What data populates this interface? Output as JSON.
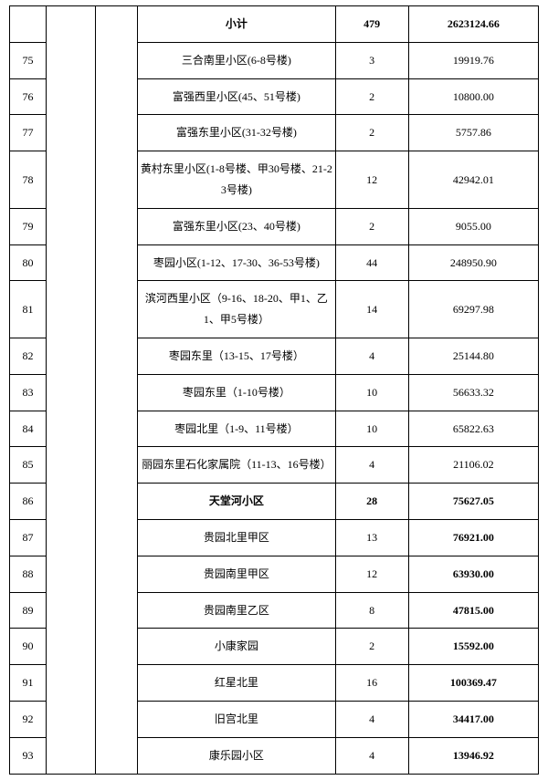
{
  "subtotal_row": {
    "label": "小计",
    "count": "479",
    "amount": "2623124.66",
    "bold": true
  },
  "rows": [
    {
      "no": "75",
      "name": "三合南里小区(6-8号楼)",
      "count": "3",
      "amount": "19919.76"
    },
    {
      "no": "76",
      "name": "富强西里小区(45、51号楼)",
      "count": "2",
      "amount": "10800.00"
    },
    {
      "no": "77",
      "name": "富强东里小区(31-32号楼)",
      "count": "2",
      "amount": "5757.86"
    },
    {
      "no": "78",
      "name": "黄村东里小区(1-8号楼、甲30号楼、21-23号楼)",
      "count": "12",
      "amount": "42942.01"
    },
    {
      "no": "79",
      "name": "富强东里小区(23、40号楼)",
      "count": "2",
      "amount": "9055.00"
    },
    {
      "no": "80",
      "name": "枣园小区(1-12、17-30、36-53号楼)",
      "count": "44",
      "amount": "248950.90"
    },
    {
      "no": "81",
      "name": "滨河西里小区（9-16、18-20、甲1、乙1、甲5号楼）",
      "count": "14",
      "amount": "69297.98"
    },
    {
      "no": "82",
      "name": "枣园东里（13-15、17号楼）",
      "count": "4",
      "amount": "25144.80"
    },
    {
      "no": "83",
      "name": "枣园东里（1-10号楼）",
      "count": "10",
      "amount": "56633.32"
    },
    {
      "no": "84",
      "name": "枣园北里（1-9、11号楼）",
      "count": "10",
      "amount": "65822.63"
    },
    {
      "no": "85",
      "name": "丽园东里石化家属院（11-13、16号楼）",
      "count": "4",
      "amount": "21106.02"
    },
    {
      "no": "86",
      "name": "天堂河小区",
      "count": "28",
      "amount": "75627.05",
      "bold_name": true,
      "bold_count": true,
      "bold_amount": true
    },
    {
      "no": "87",
      "name": "贵园北里甲区",
      "count": "13",
      "amount": "76921.00",
      "bold_amount": true
    },
    {
      "no": "88",
      "name": "贵园南里甲区",
      "count": "12",
      "amount": "63930.00",
      "bold_amount": true
    },
    {
      "no": "89",
      "name": "贵园南里乙区",
      "count": "8",
      "amount": "47815.00",
      "bold_amount": true
    },
    {
      "no": "90",
      "name": "小康家园",
      "count": "2",
      "amount": "15592.00",
      "bold_amount": true
    },
    {
      "no": "91",
      "name": "红星北里",
      "count": "16",
      "amount": "100369.47",
      "bold_amount": true
    },
    {
      "no": "92",
      "name": "旧宫北里",
      "count": "4",
      "amount": "34417.00",
      "bold_amount": true
    },
    {
      "no": "93",
      "name": "康乐园小区",
      "count": "4",
      "amount": "13946.92",
      "bold_amount": true
    }
  ]
}
